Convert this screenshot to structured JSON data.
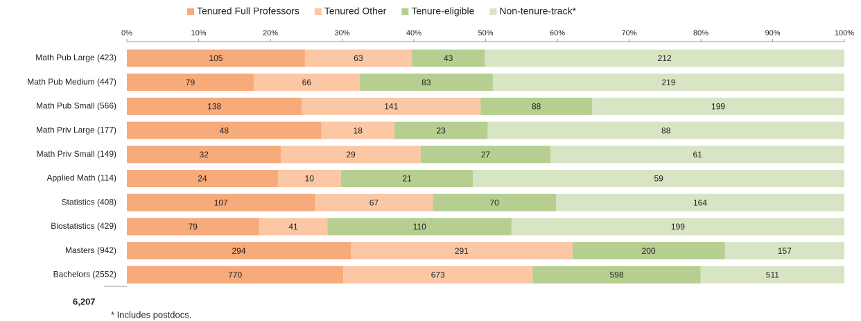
{
  "chart_data": {
    "type": "bar",
    "orientation": "horizontal",
    "stacked": "percent",
    "categories": [
      "Math Pub Large (423)",
      "Math Pub Medium (447)",
      "Math Pub Small (566)",
      "Math Priv Large (177)",
      "Math Priv Small (149)",
      "Applied Math (114)",
      "Statistics (408)",
      "Biostatistics (429)",
      "Masters (942)",
      "Bachelors (2552)"
    ],
    "series": [
      {
        "name": "Tenured Full Professors",
        "color": "#f7aa7a",
        "values": [
          105,
          79,
          138,
          48,
          32,
          24,
          107,
          79,
          294,
          770
        ]
      },
      {
        "name": "Tenured Other",
        "color": "#fcc7a5",
        "values": [
          63,
          66,
          141,
          18,
          29,
          10,
          67,
          41,
          291,
          673
        ]
      },
      {
        "name": "Tenure-eligible",
        "color": "#b6cf90",
        "values": [
          43,
          83,
          88,
          23,
          27,
          21,
          70,
          110,
          200,
          598
        ]
      },
      {
        "name": "Non-tenure-track*",
        "color": "#d7e5c4",
        "values": [
          212,
          219,
          199,
          88,
          61,
          59,
          164,
          199,
          157,
          511
        ]
      }
    ],
    "xlim": [
      0,
      100
    ],
    "xticks": [
      {
        "value": 0,
        "label": "0%"
      },
      {
        "value": 10,
        "label": "10%"
      },
      {
        "value": 20,
        "label": "20%"
      },
      {
        "value": 30,
        "label": "30%"
      },
      {
        "value": 40,
        "label": "40%"
      },
      {
        "value": 50,
        "label": "50%"
      },
      {
        "value": 60,
        "label": "60%"
      },
      {
        "value": 70,
        "label": "70%"
      },
      {
        "value": 80,
        "label": "80%"
      },
      {
        "value": 90,
        "label": "90%"
      },
      {
        "value": 100,
        "label": "100%"
      }
    ],
    "legend": "top",
    "annotations": [
      "6,207",
      "* Includes postdocs."
    ]
  }
}
